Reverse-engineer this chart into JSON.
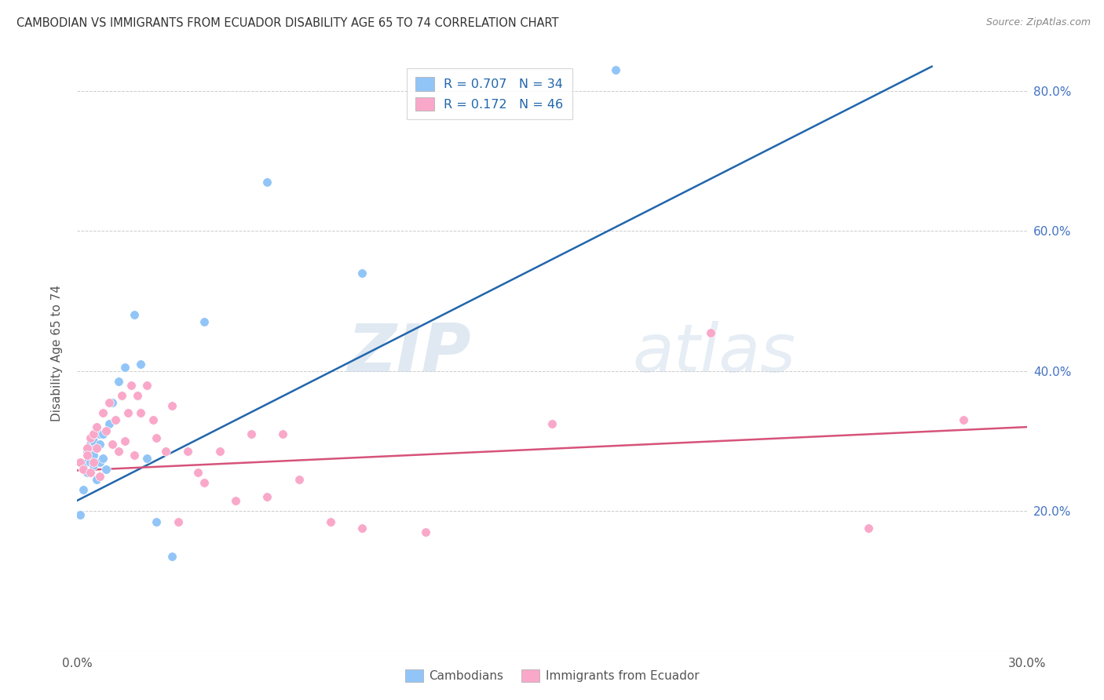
{
  "title": "CAMBODIAN VS IMMIGRANTS FROM ECUADOR DISABILITY AGE 65 TO 74 CORRELATION CHART",
  "source": "Source: ZipAtlas.com",
  "ylabel": "Disability Age 65 to 74",
  "xlabel_cambodians": "Cambodians",
  "xlabel_ecuador": "Immigrants from Ecuador",
  "xlim": [
    0.0,
    0.3
  ],
  "ylim": [
    0.0,
    0.85
  ],
  "xticks": [
    0.0,
    0.05,
    0.1,
    0.15,
    0.2,
    0.25,
    0.3
  ],
  "xticklabels": [
    "0.0%",
    "",
    "",
    "",
    "",
    "",
    "30.0%"
  ],
  "yticks": [
    0.0,
    0.2,
    0.4,
    0.6,
    0.8
  ],
  "yticklabels": [
    "",
    "20.0%",
    "40.0%",
    "60.0%",
    "80.0%"
  ],
  "cambodian_R": "0.707",
  "cambodian_N": "34",
  "ecuador_R": "0.172",
  "ecuador_N": "46",
  "color_cambodian": "#92C5F7",
  "color_ecuador": "#F9A8C9",
  "line_color_cambodian": "#2166AC",
  "line_color_ecuador": "#D6537A",
  "watermark_zip": "ZIP",
  "watermark_atlas": "atlas",
  "line_blue_x0": 0.0,
  "line_blue_y0": 0.215,
  "line_blue_x1": 0.27,
  "line_blue_y1": 0.835,
  "line_pink_x0": 0.0,
  "line_pink_y0": 0.258,
  "line_pink_x1": 0.3,
  "line_pink_y1": 0.32,
  "cambodian_x": [
    0.001,
    0.002,
    0.002,
    0.003,
    0.003,
    0.003,
    0.004,
    0.004,
    0.004,
    0.005,
    0.005,
    0.005,
    0.006,
    0.006,
    0.007,
    0.007,
    0.007,
    0.008,
    0.008,
    0.009,
    0.01,
    0.011,
    0.012,
    0.013,
    0.015,
    0.018,
    0.02,
    0.022,
    0.025,
    0.03,
    0.04,
    0.06,
    0.09,
    0.17
  ],
  "cambodian_y": [
    0.195,
    0.23,
    0.26,
    0.27,
    0.285,
    0.255,
    0.295,
    0.27,
    0.29,
    0.3,
    0.265,
    0.28,
    0.245,
    0.29,
    0.27,
    0.295,
    0.31,
    0.275,
    0.31,
    0.26,
    0.325,
    0.355,
    0.33,
    0.385,
    0.405,
    0.48,
    0.41,
    0.275,
    0.185,
    0.135,
    0.47,
    0.67,
    0.54,
    0.83
  ],
  "ecuador_x": [
    0.001,
    0.002,
    0.003,
    0.003,
    0.004,
    0.004,
    0.005,
    0.005,
    0.006,
    0.006,
    0.007,
    0.008,
    0.009,
    0.01,
    0.011,
    0.012,
    0.013,
    0.014,
    0.015,
    0.016,
    0.017,
    0.018,
    0.019,
    0.02,
    0.022,
    0.024,
    0.025,
    0.028,
    0.03,
    0.032,
    0.035,
    0.038,
    0.04,
    0.045,
    0.05,
    0.055,
    0.06,
    0.065,
    0.07,
    0.08,
    0.09,
    0.11,
    0.15,
    0.2,
    0.25,
    0.28
  ],
  "ecuador_y": [
    0.27,
    0.26,
    0.29,
    0.28,
    0.305,
    0.255,
    0.27,
    0.31,
    0.29,
    0.32,
    0.25,
    0.34,
    0.315,
    0.355,
    0.295,
    0.33,
    0.285,
    0.365,
    0.3,
    0.34,
    0.38,
    0.28,
    0.365,
    0.34,
    0.38,
    0.33,
    0.305,
    0.285,
    0.35,
    0.185,
    0.285,
    0.255,
    0.24,
    0.285,
    0.215,
    0.31,
    0.22,
    0.31,
    0.245,
    0.185,
    0.175,
    0.17,
    0.325,
    0.455,
    0.175,
    0.33
  ]
}
